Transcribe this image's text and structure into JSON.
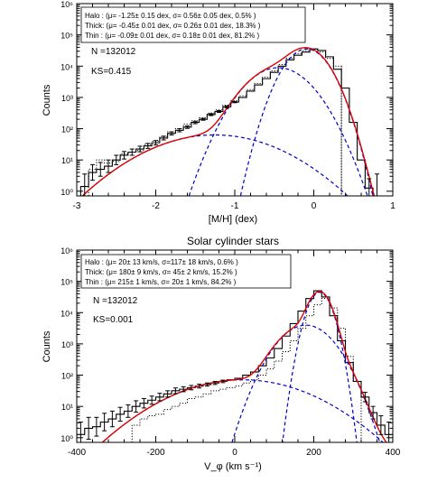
{
  "chart_data": [
    {
      "type": "line",
      "title": "",
      "xlabel": "[M/H] (dex)",
      "ylabel": "Counts",
      "xlim": [
        -3,
        1
      ],
      "ylim_log10": [
        -0.15,
        6
      ],
      "log_y": true,
      "x_ticks": [
        "-3",
        "-2",
        "-1",
        "0",
        "1"
      ],
      "y_ticks": [
        "10⁰",
        "10¹",
        "10²",
        "10³",
        "10⁴",
        "10⁵",
        "10⁶"
      ],
      "legend_box": [
        "Halo : (μ= -1.25± 0.15 dex, σ= 0.56± 0.05 dex, 0.5% )",
        "Thick: (μ= -0.45± 0.01 dex, σ= 0.26± 0.01 dex, 18.3% )",
        "Thin : (μ= -0.09± 0.01 dex, σ= 0.18± 0.01 dex, 81.2% )"
      ],
      "annotations": [
        "N =132012",
        "KS=0.415"
      ],
      "histogram_solid": {
        "x_edges": [
          -2.95,
          -2.85,
          -2.75,
          -2.65,
          -2.55,
          -2.45,
          -2.35,
          -2.25,
          -2.15,
          -2.05,
          -1.95,
          -1.85,
          -1.75,
          -1.65,
          -1.55,
          -1.45,
          -1.35,
          -1.25,
          -1.15,
          -1.05,
          -0.95,
          -0.85,
          -0.75,
          -0.65,
          -0.55,
          -0.45,
          -0.35,
          -0.25,
          -0.15,
          -0.05,
          0.05,
          0.15,
          0.25,
          0.35,
          0.45,
          0.55,
          0.65,
          0.75
        ],
        "log10_counts": [
          0.15,
          0.6,
          0.7,
          0.8,
          1.0,
          1.15,
          1.25,
          1.35,
          1.45,
          1.55,
          1.7,
          1.85,
          1.95,
          2.05,
          2.2,
          2.3,
          2.45,
          2.55,
          2.7,
          2.85,
          3.0,
          3.2,
          3.4,
          3.6,
          3.8,
          4.0,
          4.2,
          4.35,
          4.45,
          4.55,
          4.5,
          4.3,
          3.9,
          3.3,
          2.2,
          1.0,
          0.1
        ]
      },
      "histogram_dotted": {
        "x_edges": [
          -2.85,
          -2.75,
          -2.65,
          -2.55,
          -2.45,
          -2.35,
          -2.25,
          -2.15,
          -2.05,
          -1.95,
          -1.85,
          -1.75,
          -1.65,
          -1.55,
          -1.45,
          -1.35,
          -1.25,
          -1.15,
          -1.05,
          -0.95,
          -0.85,
          -0.75,
          -0.65,
          -0.55,
          -0.45,
          -0.35,
          -0.25,
          -0.15,
          -0.05,
          0.05,
          0.15,
          0.25,
          0.35
        ],
        "log10_counts": [
          0.7,
          1.0,
          0.9,
          0.95,
          1.2,
          1.25,
          1.3,
          1.5,
          1.6,
          1.75,
          1.9,
          2.0,
          2.15,
          2.25,
          2.35,
          2.5,
          2.6,
          2.75,
          2.9,
          3.05,
          3.25,
          3.45,
          3.65,
          3.85,
          4.05,
          4.25,
          4.4,
          4.5,
          4.55,
          4.45,
          4.25,
          4.0
        ],
        "drop_line_x": 0.35
      },
      "error_bars": {
        "x": [
          -2.9,
          -2.8,
          -2.7,
          -2.6,
          -2.5,
          -2.4,
          -2.3,
          -2.2,
          -2.1,
          -2.0,
          -1.9,
          -1.8,
          -1.7,
          -1.6,
          -1.5,
          -1.4,
          -1.3,
          -1.2,
          -1.1,
          -1.0,
          0.7,
          0.8
        ],
        "half_width_log10": [
          0.4,
          0.25,
          0.22,
          0.2,
          0.15,
          0.12,
          0.1,
          0.09,
          0.08,
          0.07,
          0.06,
          0.05,
          0.05,
          0.04,
          0.04,
          0.03,
          0.03,
          0.03,
          0.03,
          0.02,
          0.3,
          0.4
        ]
      },
      "model_components": [
        {
          "mu": -1.25,
          "sigma": 0.56,
          "peak_log10": 1.8,
          "style": "dashed",
          "color": "#0000cc"
        },
        {
          "mu": -0.45,
          "sigma": 0.26,
          "peak_log10": 3.95,
          "style": "dashed",
          "color": "#0000cc"
        },
        {
          "mu": -0.09,
          "sigma": 0.18,
          "peak_log10": 4.55,
          "style": "dashed",
          "color": "#0000cc"
        }
      ],
      "total_model_color": "#dd0000"
    },
    {
      "type": "line",
      "title": "Solar cylinder stars",
      "xlabel": "V_φ (km s⁻¹)",
      "ylabel": "Counts",
      "xlim": [
        -400,
        400
      ],
      "ylim_log10": [
        -0.15,
        6
      ],
      "log_y": true,
      "x_ticks": [
        "-400",
        "-200",
        "0",
        "200",
        "400"
      ],
      "y_ticks": [
        "10⁰",
        "10¹",
        "10²",
        "10³",
        "10⁴",
        "10⁵",
        "10⁶"
      ],
      "legend_box": [
        "Halo : (μ= 20± 13 km/s, σ=117± 18 km/s, 0.6% )",
        "Thick: (μ= 180± 9 km/s, σ= 45± 2 km/s, 15.2% )",
        "Thin : (μ= 215± 1 km/s, σ= 20± 1 km/s, 84.2% )"
      ],
      "annotations": [
        "N =132012",
        "KS=0.001"
      ],
      "histogram_solid": {
        "x_edges": [
          -400,
          -380,
          -360,
          -340,
          -320,
          -300,
          -280,
          -260,
          -240,
          -220,
          -200,
          -180,
          -160,
          -140,
          -120,
          -100,
          -80,
          -60,
          -40,
          -20,
          0,
          20,
          40,
          60,
          80,
          100,
          120,
          140,
          160,
          180,
          200,
          220,
          240,
          260,
          280,
          300,
          320,
          340,
          360,
          380,
          400
        ],
        "log10_counts": [
          0.1,
          0.3,
          0.35,
          0.5,
          0.6,
          0.75,
          0.85,
          1.0,
          1.1,
          1.2,
          1.3,
          1.4,
          1.5,
          1.55,
          1.6,
          1.65,
          1.7,
          1.75,
          1.8,
          1.85,
          1.9,
          2.0,
          2.1,
          2.3,
          2.55,
          2.85,
          3.25,
          3.65,
          4.05,
          4.45,
          4.7,
          4.5,
          3.9,
          3.1,
          2.4,
          1.8,
          1.3,
          0.8,
          0.4,
          0.1
        ]
      },
      "histogram_dotted": {
        "x_edges": [
          -260,
          -240,
          -220,
          -200,
          -180,
          -160,
          -140,
          -120,
          -100,
          -80,
          -60,
          -40,
          -20,
          0,
          20,
          40,
          60,
          80,
          100,
          120,
          140,
          160,
          180,
          200,
          220,
          240,
          260,
          280,
          300,
          320
        ],
        "log10_counts": [
          0.4,
          0.6,
          0.7,
          0.75,
          0.9,
          1.0,
          1.1,
          1.25,
          1.3,
          1.4,
          1.5,
          1.55,
          1.6,
          1.65,
          1.75,
          1.85,
          2.0,
          2.2,
          2.45,
          2.75,
          3.1,
          3.5,
          3.9,
          4.25,
          4.45,
          4.15,
          3.5,
          2.6,
          1.8
        ]
      },
      "error_bars": {
        "x": [
          -390,
          -370,
          -350,
          -330,
          -310,
          -290,
          -270,
          -250,
          -230,
          -210,
          -190,
          -170,
          -150,
          -130,
          -110,
          -90,
          -70,
          -50,
          -30,
          330,
          350,
          370,
          390
        ],
        "half_width_log10": [
          0.4,
          0.35,
          0.3,
          0.28,
          0.25,
          0.22,
          0.2,
          0.18,
          0.15,
          0.13,
          0.12,
          0.1,
          0.09,
          0.08,
          0.07,
          0.06,
          0.05,
          0.05,
          0.04,
          0.15,
          0.2,
          0.3,
          0.4
        ]
      },
      "model_components": [
        {
          "mu": 20,
          "sigma": 117,
          "peak_log10": 1.85,
          "style": "dashed",
          "color": "#0000cc"
        },
        {
          "mu": 180,
          "sigma": 45,
          "peak_log10": 3.6,
          "style": "dashed",
          "color": "#0000cc"
        },
        {
          "mu": 215,
          "sigma": 20,
          "peak_log10": 4.65,
          "style": "dashed",
          "color": "#0000cc"
        }
      ],
      "total_model_color": "#dd0000"
    }
  ]
}
